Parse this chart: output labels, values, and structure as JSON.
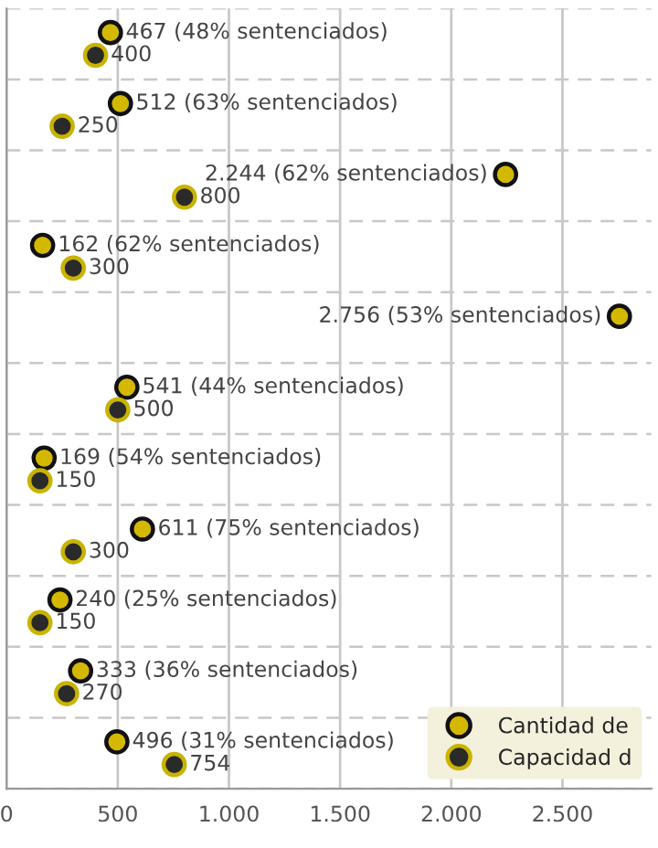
{
  "chart_data": {
    "type": "scatter",
    "orientation": "horizontal",
    "categories": [
      null,
      null,
      null,
      null,
      null,
      null,
      null,
      null,
      null,
      null,
      null
    ],
    "series": [
      {
        "name": "Cantidad de",
        "color": "#d4b800",
        "values": [
          467,
          512,
          2244,
          162,
          2756,
          541,
          169,
          611,
          240,
          333,
          496
        ],
        "value_labels": [
          "467 (48% sentenciados)",
          "512 (63% sentenciados)",
          "2.244 (62% sentenciados)",
          "162 (62% sentenciados)",
          "2.756 (53% sentenciados)",
          "541 (44% sentenciados)",
          "169 (54% sentenciados)",
          "611 (75% sentenciados)",
          "240 (25% sentenciados)",
          "333 (36% sentenciados)",
          "496 (31% sentenciados)"
        ]
      },
      {
        "name": "Capacidad d",
        "color": "#2a2a2a",
        "values": [
          400,
          250,
          800,
          300,
          null,
          500,
          150,
          300,
          150,
          270,
          754
        ],
        "value_labels": [
          "400",
          "250",
          "800",
          "300",
          null,
          "500",
          "150",
          "300",
          "150",
          "270",
          "754"
        ]
      }
    ],
    "xlim": [
      0,
      2900
    ],
    "xticks": [
      0,
      {
        "value": 500,
        "label": "500"
      },
      {
        "value": 1000,
        "label": "1.000"
      },
      {
        "value": 1500,
        "label": "1.500"
      },
      {
        "value": 2000,
        "label": "2.000"
      },
      {
        "value": 2500,
        "label": "2.500"
      }
    ],
    "grid": "x",
    "legend": "bottom right",
    "marker": "circle"
  }
}
